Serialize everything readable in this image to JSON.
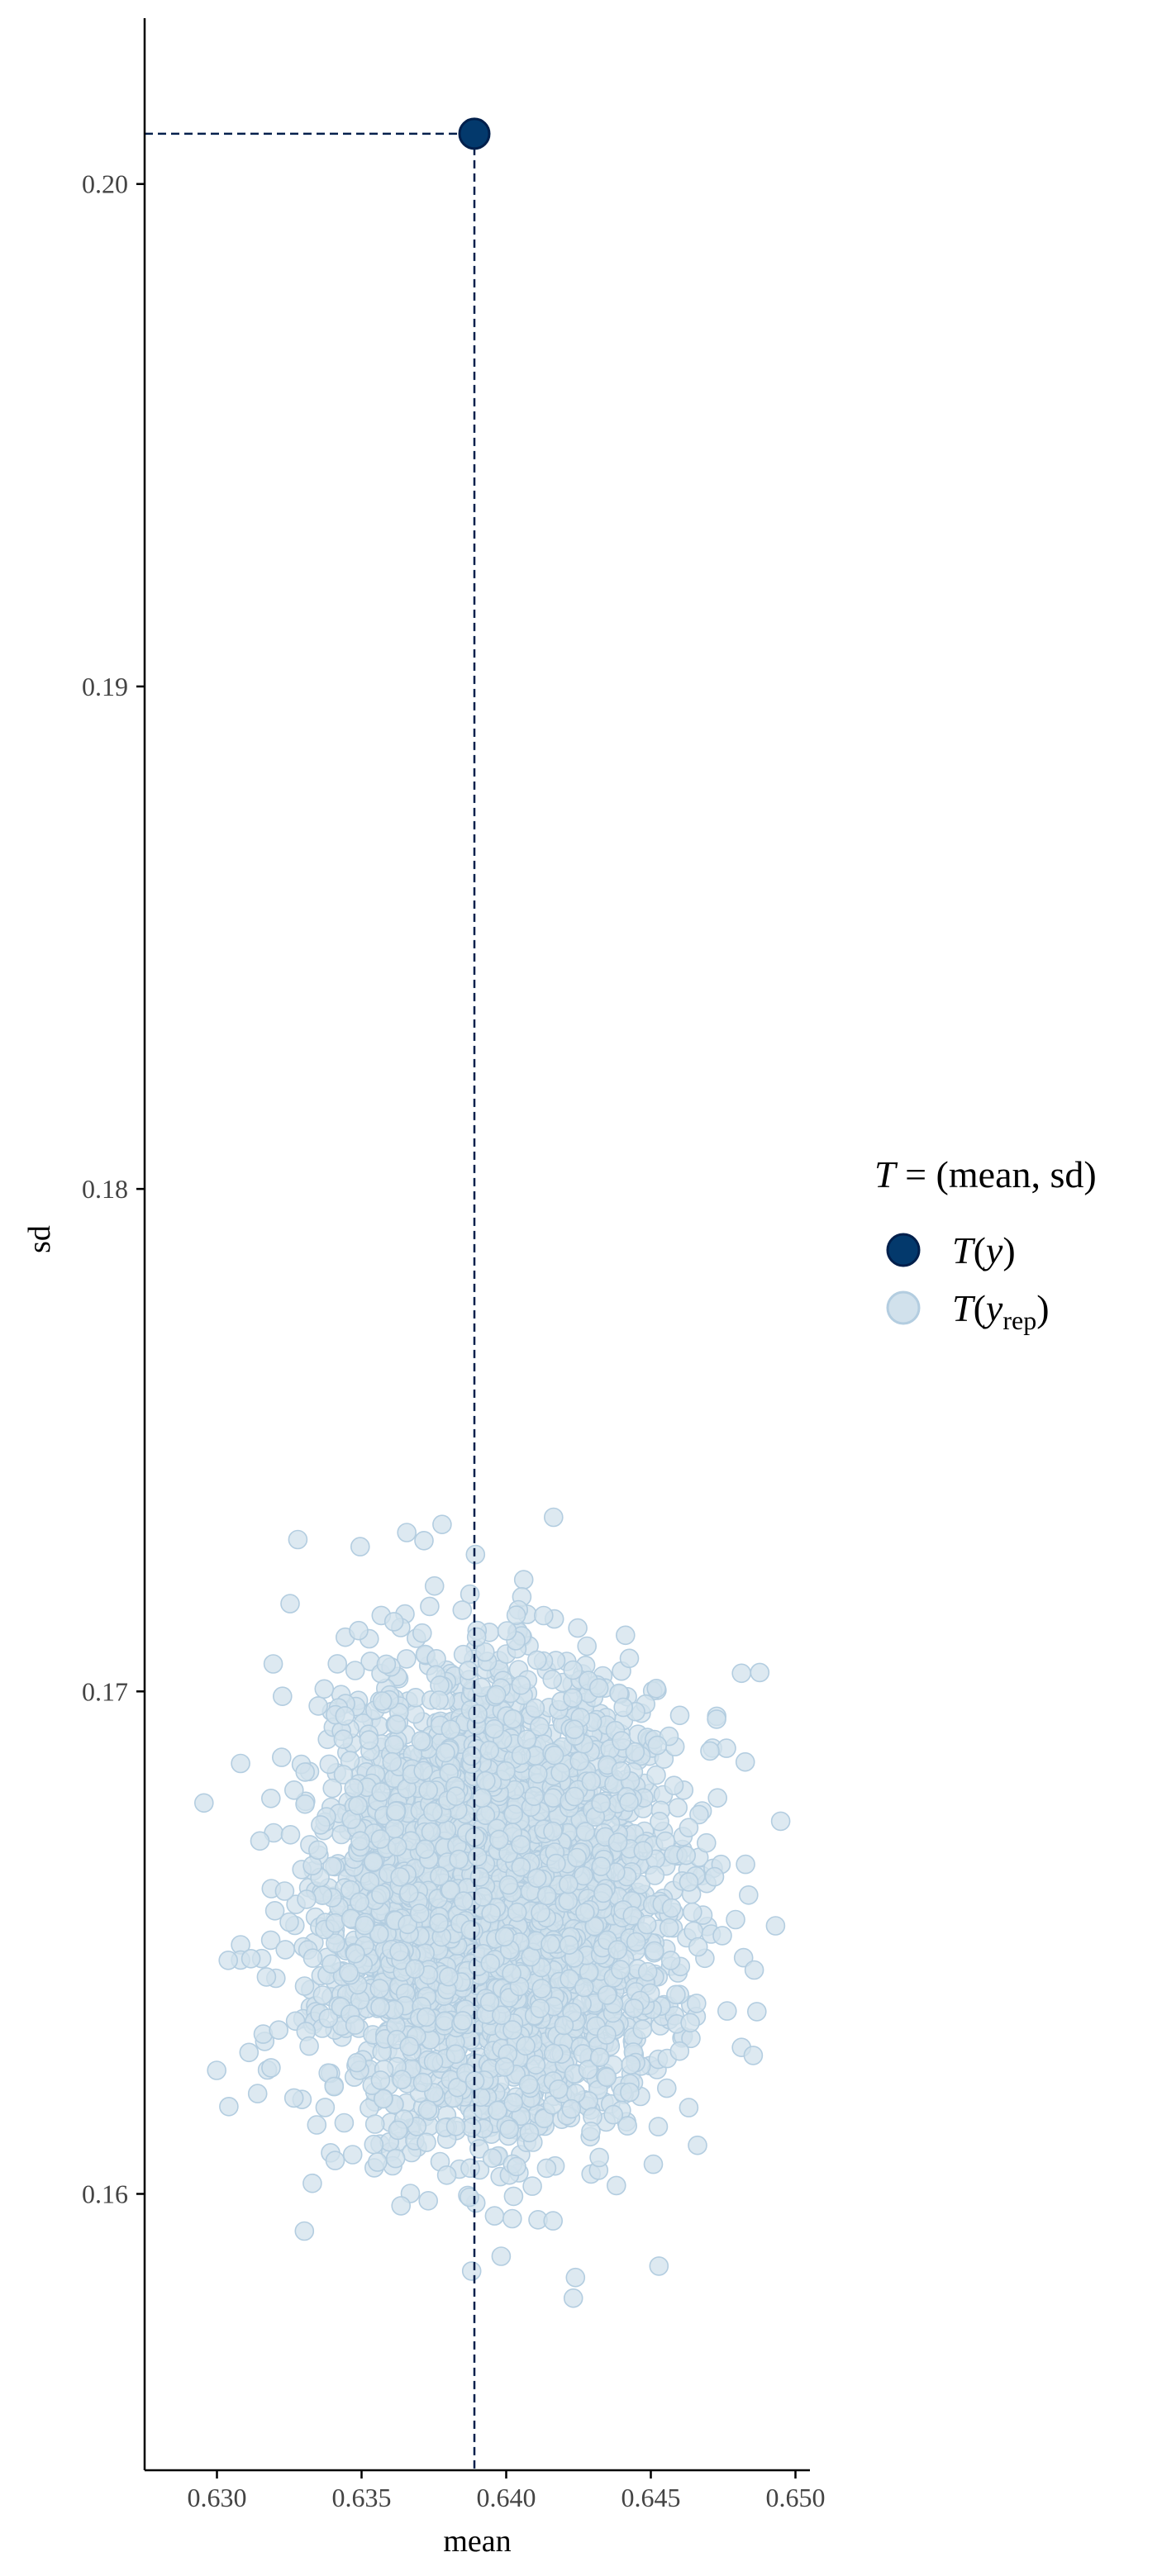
{
  "chart_data": {
    "type": "scatter",
    "title": "",
    "xlabel": "mean",
    "ylabel": "sd",
    "xlim": [
      0.6275,
      0.6505
    ],
    "ylim": [
      0.1545,
      0.2033
    ],
    "x_ticks": [
      0.63,
      0.635,
      0.64,
      0.645,
      0.65
    ],
    "x_tick_labels": [
      "0.630",
      "0.635",
      "0.640",
      "0.645",
      "0.650"
    ],
    "y_ticks": [
      0.16,
      0.17,
      0.18,
      0.19,
      0.2
    ],
    "y_tick_labels": [
      "0.16",
      "0.17",
      "0.18",
      "0.19",
      "0.20"
    ],
    "grid": false,
    "legend": {
      "title_lhs": "T",
      "title_rhs": "(mean, sd)",
      "position": "right",
      "entries": [
        {
          "key": "observed",
          "prefix": "T",
          "open": "(",
          "var": "y",
          "sub": "",
          "close": ")"
        },
        {
          "key": "replicated",
          "prefix": "T",
          "open": "(",
          "var": "y",
          "sub": "rep",
          "close": ")"
        }
      ]
    },
    "observed": {
      "x": 0.6389,
      "y": 0.201
    },
    "replicated": {
      "count": 4000,
      "mean_x": 0.6396,
      "sd_x": 0.0029,
      "mean_y": 0.1659,
      "sd_y": 0.0022,
      "x_range": [
        0.6286,
        0.6497
      ],
      "y_range": [
        0.1565,
        0.1744
      ]
    },
    "reference_lines": {
      "x": 0.6389,
      "y": 0.201,
      "style": "dashed"
    },
    "colors": {
      "observed_fill": "#03396c",
      "observed_stroke": "#011f4b",
      "replicated_fill": "#d1e1ec",
      "replicated_stroke": "#b3cde0",
      "reference_line": "#011f4b",
      "axis": "#000000"
    }
  }
}
